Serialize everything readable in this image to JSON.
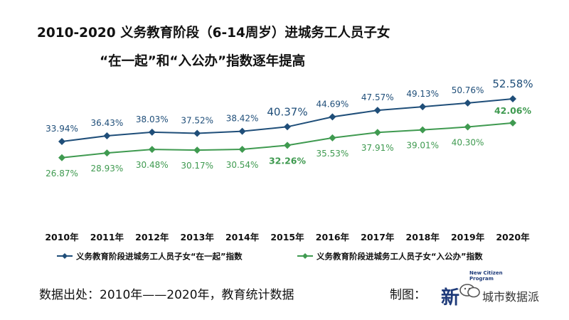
{
  "title_line1": "2010-2020 义务教育阶段（6-14周岁）进城务工人员子女",
  "title_line2": "“在一起”和“入公办”指数逐年提高",
  "source": "数据出处：2010年——2020年，教育统计数据",
  "maker_label": "制图：",
  "logo": {
    "mark": "新",
    "small_text_1": "New Citizen",
    "small_text_2": "Program",
    "watermark": "城市数据派",
    "icon": "wechat-icon"
  },
  "chart_data": {
    "type": "line",
    "categories": [
      "2010年",
      "2011年",
      "2012年",
      "2013年",
      "2014年",
      "2015年",
      "2016年",
      "2017年",
      "2018年",
      "2019年",
      "2020年"
    ],
    "series": [
      {
        "name": "义务教育阶段进城务工人员子女“在一起”指数",
        "color": "#1f4e79",
        "values": [
          33.94,
          36.43,
          38.03,
          37.52,
          38.42,
          40.37,
          44.69,
          47.57,
          49.13,
          50.76,
          52.58
        ],
        "labels": [
          "33.94%",
          "36.43%",
          "38.03%",
          "37.52%",
          "38.42%",
          "40.37%",
          "44.69%",
          "47.57%",
          "49.13%",
          "50.76%",
          "52.58%"
        ],
        "highlight": [
          5,
          10
        ]
      },
      {
        "name": "义务教育阶段进城务工人员子女“入公办”指数",
        "color": "#3f9a50",
        "values": [
          26.87,
          28.93,
          30.48,
          30.17,
          30.54,
          32.26,
          35.53,
          37.91,
          39.01,
          40.3,
          42.06
        ],
        "labels": [
          "26.87%",
          "28.93%",
          "30.48%",
          "30.17%",
          "30.54%",
          "32.26%",
          "35.53%",
          "37.91%",
          "39.01%",
          "40.30%",
          "42.06%"
        ],
        "highlight": [
          5,
          10
        ]
      }
    ],
    "ylim": [
      0,
      70
    ],
    "grid": false,
    "legend": "bottom"
  }
}
